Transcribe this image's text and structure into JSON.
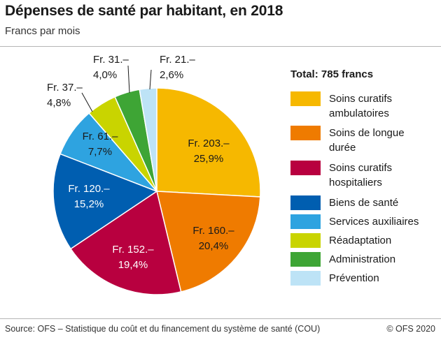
{
  "header": {
    "title": "Dépenses de santé par habitant, en 2018",
    "subtitle": "Francs par mois"
  },
  "chart_data": {
    "type": "pie",
    "title": "Dépenses de santé par habitant, en 2018",
    "subtitle": "Francs par mois",
    "total_label": "Total: 785 francs",
    "slices": [
      {
        "name": "Soins curatifs ambulatoires",
        "value": 203,
        "percent": 25.9,
        "label_amount": "Fr. 203.–",
        "label_percent": "25,9%",
        "color": "#f6b800"
      },
      {
        "name": "Soins de longue durée",
        "value": 160,
        "percent": 20.4,
        "label_amount": "Fr. 160.–",
        "label_percent": "20,4%",
        "color": "#ef7b00"
      },
      {
        "name": "Soins curatifs hospitaliers",
        "value": 152,
        "percent": 19.4,
        "label_amount": "Fr. 152.–",
        "label_percent": "19,4%",
        "color": "#b8003f"
      },
      {
        "name": "Biens de santé",
        "value": 120,
        "percent": 15.2,
        "label_amount": "Fr. 120.–",
        "label_percent": "15,2%",
        "color": "#005eb0"
      },
      {
        "name": "Services auxiliaires",
        "value": 61,
        "percent": 7.7,
        "label_amount": "Fr. 61.–",
        "label_percent": "7,7%",
        "color": "#2ea3e0"
      },
      {
        "name": "Réadaptation",
        "value": 37,
        "percent": 4.8,
        "label_amount": "Fr. 37.–",
        "label_percent": "4,8%",
        "color": "#c9d400"
      },
      {
        "name": "Administration",
        "value": 31,
        "percent": 4.0,
        "label_amount": "Fr. 31.–",
        "label_percent": "4,0%",
        "color": "#3ea535"
      },
      {
        "name": "Prévention",
        "value": 21,
        "percent": 2.6,
        "label_amount": "Fr. 21.–",
        "label_percent": "2,6%",
        "color": "#bde3f6"
      }
    ]
  },
  "legend": {
    "title": "Total: 785 francs",
    "items": [
      {
        "label_line1": "Soins curatifs",
        "label_line2": "ambulatoires"
      },
      {
        "label_line1": "Soins de longue",
        "label_line2": "durée"
      },
      {
        "label_line1": "Soins curatifs",
        "label_line2": "hospitaliers"
      },
      {
        "label_line1": "Biens de santé",
        "label_line2": ""
      },
      {
        "label_line1": "Services auxiliaires",
        "label_line2": ""
      },
      {
        "label_line1": "Réadaptation",
        "label_line2": ""
      },
      {
        "label_line1": "Administration",
        "label_line2": ""
      },
      {
        "label_line1": "Prévention",
        "label_line2": ""
      }
    ]
  },
  "footer": {
    "source": "Source: OFS – Statistique du coût et du financement du système de santé (COU)",
    "copyright": "© OFS 2020"
  }
}
